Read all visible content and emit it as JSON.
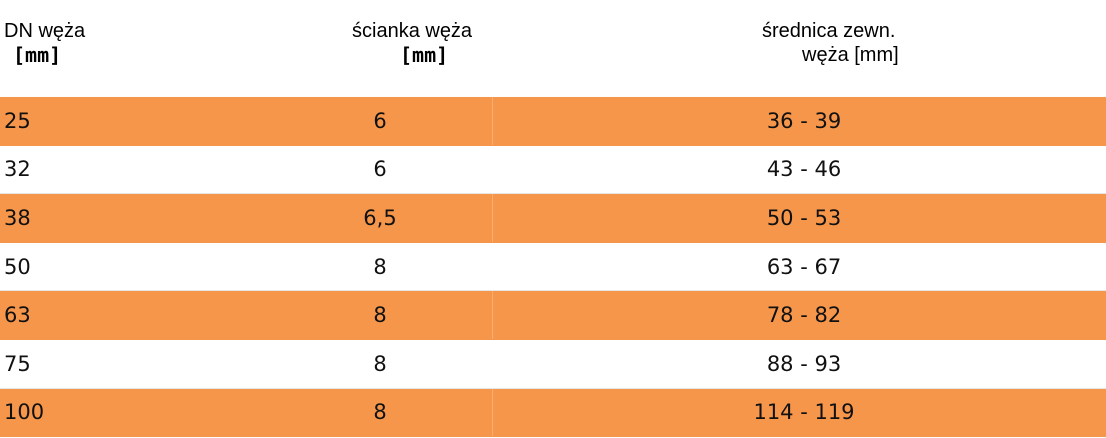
{
  "headers": {
    "col1": {
      "line1": "DN węża",
      "line2": "[mm]"
    },
    "col2": {
      "line1": "ścianka węża",
      "line2": "[mm]"
    },
    "col3": {
      "line1": "średnica zewn.",
      "line2": "węża  [mm]"
    }
  },
  "colors": {
    "stripe": "#f5964b",
    "background": "#ffffff"
  },
  "rows": [
    {
      "dn": "25",
      "wall": "6",
      "diameter": "36 - 39",
      "highlight": true
    },
    {
      "dn": "32",
      "wall": "6",
      "diameter": "43 - 46",
      "highlight": false
    },
    {
      "dn": "38",
      "wall": "6,5",
      "diameter": "50 - 53",
      "highlight": true
    },
    {
      "dn": "50",
      "wall": "8",
      "diameter": "63 - 67",
      "highlight": false
    },
    {
      "dn": "63",
      "wall": "8",
      "diameter": "78 - 82",
      "highlight": true
    },
    {
      "dn": "75",
      "wall": "8",
      "diameter": "88 - 93",
      "highlight": false
    },
    {
      "dn": "100",
      "wall": "8",
      "diameter": "114 - 119",
      "highlight": true
    }
  ]
}
